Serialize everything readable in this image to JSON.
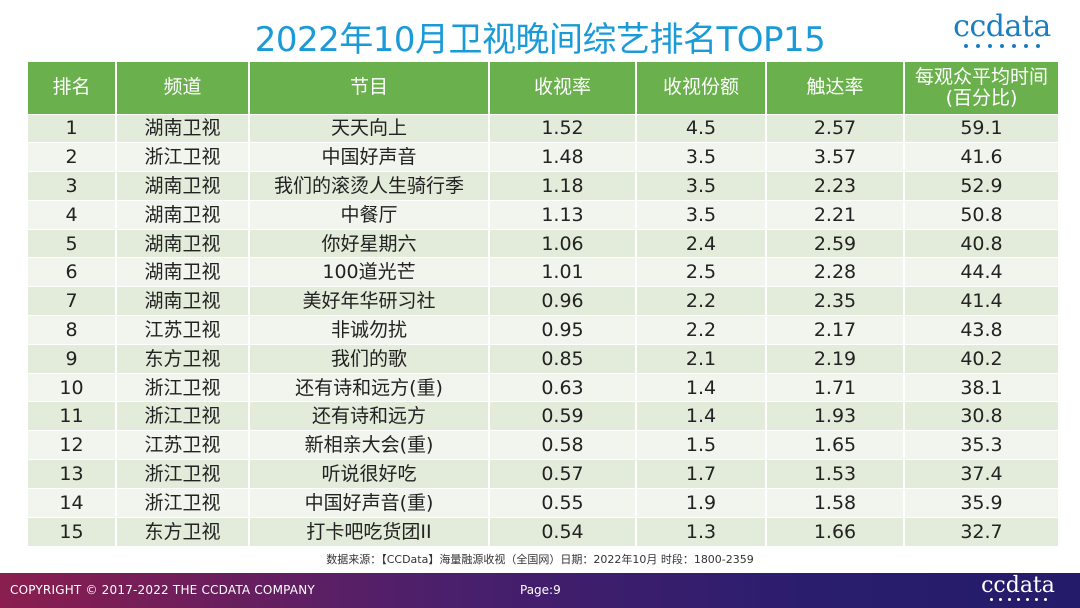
{
  "title": "2022年10月卫视晚间综艺排名TOP15",
  "brand": "ccdata",
  "table": {
    "headers": {
      "rank": "排名",
      "channel": "频道",
      "program": "节目",
      "rating": "收视率",
      "share": "收视份额",
      "reach": "触达率",
      "avg_time_line1": "每观众平均时间",
      "avg_time_line2": "(百分比)"
    },
    "rows": [
      {
        "rank": "1",
        "channel": "湖南卫视",
        "program": "天天向上",
        "rating": "1.52",
        "share": "4.5",
        "reach": "2.57",
        "avg_time": "59.1"
      },
      {
        "rank": "2",
        "channel": "浙江卫视",
        "program": "中国好声音",
        "rating": "1.48",
        "share": "3.5",
        "reach": "3.57",
        "avg_time": "41.6"
      },
      {
        "rank": "3",
        "channel": "湖南卫视",
        "program": "我们的滚烫人生骑行季",
        "rating": "1.18",
        "share": "3.5",
        "reach": "2.23",
        "avg_time": "52.9"
      },
      {
        "rank": "4",
        "channel": "湖南卫视",
        "program": "中餐厅",
        "rating": "1.13",
        "share": "3.5",
        "reach": "2.21",
        "avg_time": "50.8"
      },
      {
        "rank": "5",
        "channel": "湖南卫视",
        "program": "你好星期六",
        "rating": "1.06",
        "share": "2.4",
        "reach": "2.59",
        "avg_time": "40.8"
      },
      {
        "rank": "6",
        "channel": "湖南卫视",
        "program": "100道光芒",
        "rating": "1.01",
        "share": "2.5",
        "reach": "2.28",
        "avg_time": "44.4"
      },
      {
        "rank": "7",
        "channel": "湖南卫视",
        "program": "美好年华研习社",
        "rating": "0.96",
        "share": "2.2",
        "reach": "2.35",
        "avg_time": "41.4"
      },
      {
        "rank": "8",
        "channel": "江苏卫视",
        "program": "非诚勿扰",
        "rating": "0.95",
        "share": "2.2",
        "reach": "2.17",
        "avg_time": "43.8"
      },
      {
        "rank": "9",
        "channel": "东方卫视",
        "program": "我们的歌",
        "rating": "0.85",
        "share": "2.1",
        "reach": "2.19",
        "avg_time": "40.2"
      },
      {
        "rank": "10",
        "channel": "浙江卫视",
        "program": "还有诗和远方(重)",
        "rating": "0.63",
        "share": "1.4",
        "reach": "1.71",
        "avg_time": "38.1"
      },
      {
        "rank": "11",
        "channel": "浙江卫视",
        "program": "还有诗和远方",
        "rating": "0.59",
        "share": "1.4",
        "reach": "1.93",
        "avg_time": "30.8"
      },
      {
        "rank": "12",
        "channel": "江苏卫视",
        "program": "新相亲大会(重)",
        "rating": "0.58",
        "share": "1.5",
        "reach": "1.65",
        "avg_time": "35.3"
      },
      {
        "rank": "13",
        "channel": "浙江卫视",
        "program": "听说很好吃",
        "rating": "0.57",
        "share": "1.7",
        "reach": "1.53",
        "avg_time": "37.4"
      },
      {
        "rank": "14",
        "channel": "浙江卫视",
        "program": "中国好声音(重)",
        "rating": "0.55",
        "share": "1.9",
        "reach": "1.58",
        "avg_time": "35.9"
      },
      {
        "rank": "15",
        "channel": "东方卫视",
        "program": "打卡吧吃货团II",
        "rating": "0.54",
        "share": "1.3",
        "reach": "1.66",
        "avg_time": "32.7"
      }
    ]
  },
  "source": "数据来源：【CCData】海量融源收视（全国网）日期：2022年10月 时段：1800-2359",
  "footer": {
    "copyright": "COPYRIGHT © 2017-2022 THE CCDATA COMPANY",
    "page": "Page:9"
  },
  "colors": {
    "title": "#1a9ad6",
    "header_bg": "#6ab04c",
    "row_odd": "#e3ecda",
    "row_even": "#f1f5ee"
  }
}
